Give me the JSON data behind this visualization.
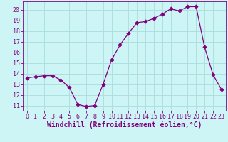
{
  "x": [
    0,
    1,
    2,
    3,
    4,
    5,
    6,
    7,
    8,
    9,
    10,
    11,
    12,
    13,
    14,
    15,
    16,
    17,
    18,
    19,
    20,
    21,
    22,
    23
  ],
  "y": [
    13.6,
    13.7,
    13.8,
    13.8,
    13.4,
    12.7,
    11.1,
    10.9,
    11.0,
    13.0,
    15.3,
    16.7,
    17.8,
    18.8,
    18.9,
    19.2,
    19.6,
    20.1,
    19.9,
    20.3,
    20.3,
    16.5,
    13.9,
    12.5
  ],
  "line_color": "#800080",
  "marker": "D",
  "marker_size": 2.5,
  "bg_color": "#cef5f5",
  "grid_color": "#aadddd",
  "xlabel": "Windchill (Refroidissement éolien,°C)",
  "xlabel_color": "#800080",
  "xlabel_fontsize": 7,
  "tick_color": "#800080",
  "tick_fontsize": 6,
  "ylim": [
    10.5,
    20.8
  ],
  "xlim": [
    -0.5,
    23.5
  ],
  "yticks": [
    11,
    12,
    13,
    14,
    15,
    16,
    17,
    18,
    19,
    20
  ],
  "xticks": [
    0,
    1,
    2,
    3,
    4,
    5,
    6,
    7,
    8,
    9,
    10,
    11,
    12,
    13,
    14,
    15,
    16,
    17,
    18,
    19,
    20,
    21,
    22,
    23
  ]
}
